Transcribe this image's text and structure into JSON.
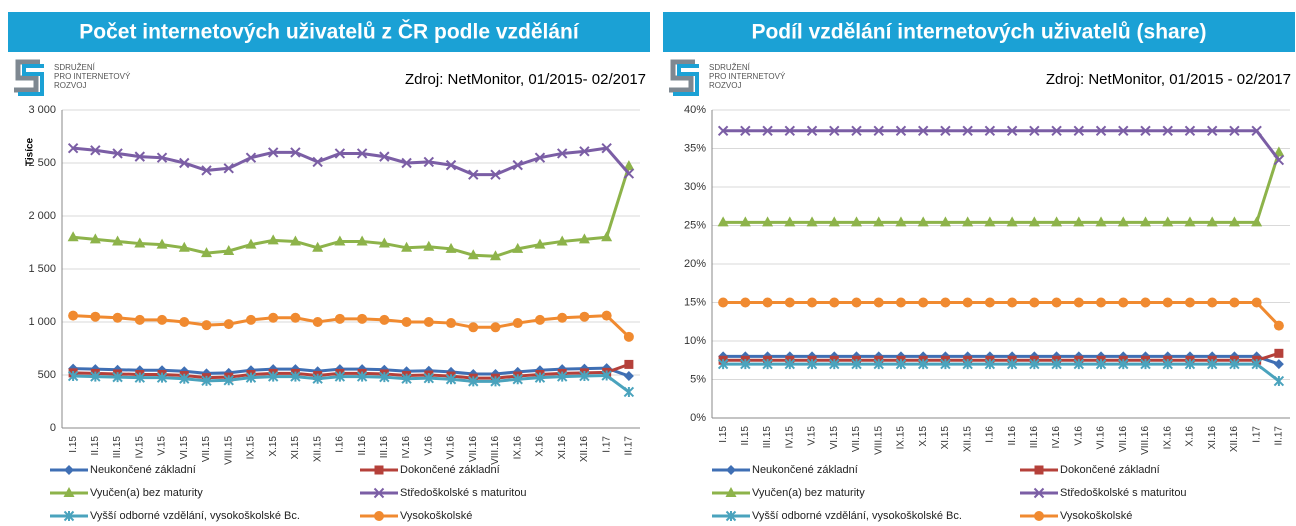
{
  "logo_text": [
    "SDRUŽENÍ",
    "PRO INTERNETOVÝ",
    "ROZVOJ"
  ],
  "chart_data": [
    {
      "type": "line",
      "title": "Počet internetových uživatelů z ČR podle vzdělání",
      "source": "Zdroj: NetMonitor, 01/2015- 02/2017",
      "y_label": "Tisíce",
      "categories": [
        "I.15",
        "II.15",
        "III.15",
        "IV.15",
        "V.15",
        "VI.15",
        "VII.15",
        "VIII.15",
        "IX.15",
        "X.15",
        "XI.15",
        "XII.15",
        "I.16",
        "II.16",
        "III.16",
        "IV.16",
        "V.16",
        "VI.16",
        "VII.16",
        "VIII.16",
        "IX.16",
        "X.16",
        "XI.16",
        "XII.16",
        "I.17",
        "II.17"
      ],
      "ylim": [
        0,
        3000
      ],
      "yticks": [
        0,
        500,
        {
          "value": 1000,
          "label": "1 000"
        },
        {
          "value": 1500,
          "label": "1 500"
        },
        {
          "value": 2000,
          "label": "2 000"
        },
        {
          "value": 2500,
          "label": "2 500"
        },
        {
          "value": 3000,
          "label": "3 000"
        }
      ],
      "grid": true,
      "series": [
        {
          "name": "Neukončené základní",
          "color": "#3f6fb4",
          "marker": "diamond",
          "values": [
            560,
            555,
            550,
            545,
            545,
            535,
            515,
            520,
            545,
            555,
            555,
            535,
            555,
            555,
            550,
            535,
            540,
            530,
            510,
            510,
            530,
            545,
            555,
            560,
            565,
            490
          ]
        },
        {
          "name": "Dokončené základní",
          "color": "#b5403a",
          "marker": "square",
          "values": [
            520,
            515,
            510,
            505,
            505,
            495,
            475,
            480,
            505,
            515,
            515,
            495,
            515,
            515,
            510,
            495,
            500,
            490,
            470,
            470,
            490,
            505,
            515,
            520,
            525,
            600
          ]
        },
        {
          "name": "Vyučen(a) bez maturity",
          "color": "#8db34a",
          "marker": "triangle",
          "values": [
            1800,
            1780,
            1760,
            1740,
            1730,
            1700,
            1650,
            1670,
            1730,
            1770,
            1760,
            1700,
            1760,
            1760,
            1740,
            1700,
            1710,
            1690,
            1630,
            1620,
            1690,
            1730,
            1760,
            1780,
            1800,
            2470
          ]
        },
        {
          "name": "Středoškolské s maturitou",
          "color": "#7b5ea5",
          "marker": "x",
          "values": [
            2640,
            2620,
            2590,
            2560,
            2550,
            2500,
            2430,
            2450,
            2550,
            2600,
            2600,
            2510,
            2590,
            2590,
            2560,
            2500,
            2510,
            2480,
            2390,
            2390,
            2480,
            2550,
            2590,
            2610,
            2640,
            2400
          ]
        },
        {
          "name": "Vyšší odborné vzdělání, vysokoškolské Bc.",
          "color": "#4aa3bd",
          "marker": "star",
          "values": [
            490,
            485,
            480,
            475,
            475,
            465,
            445,
            450,
            475,
            485,
            485,
            465,
            485,
            485,
            480,
            465,
            470,
            460,
            440,
            440,
            460,
            475,
            485,
            490,
            495,
            340
          ]
        },
        {
          "name": "Vysokoškolské",
          "color": "#f08a30",
          "marker": "circle",
          "values": [
            1060,
            1050,
            1040,
            1020,
            1020,
            1000,
            970,
            980,
            1020,
            1040,
            1040,
            1000,
            1030,
            1030,
            1020,
            1000,
            1000,
            990,
            950,
            950,
            990,
            1020,
            1040,
            1050,
            1060,
            860
          ]
        }
      ]
    },
    {
      "type": "line",
      "title": "Podíl vzdělání internetových uživatelů (share)",
      "source": "Zdroj: NetMonitor, 01/2015 - 02/2017",
      "categories": [
        "I.15",
        "II.15",
        "III.15",
        "IV.15",
        "V.15",
        "VI.15",
        "VII.15",
        "VIII.15",
        "IX.15",
        "X.15",
        "XI.15",
        "XII.15",
        "I.16",
        "II.16",
        "III.16",
        "IV.16",
        "V.16",
        "VI.16",
        "VII.16",
        "VIII.16",
        "IX.16",
        "X.16",
        "XI.16",
        "XII.16",
        "I.17",
        "II.17"
      ],
      "ylim": [
        0,
        40
      ],
      "yticks": [
        {
          "value": 0,
          "label": "0%"
        },
        {
          "value": 5,
          "label": "5%"
        },
        {
          "value": 10,
          "label": "10%"
        },
        {
          "value": 15,
          "label": "15%"
        },
        {
          "value": 20,
          "label": "20%"
        },
        {
          "value": 25,
          "label": "25%"
        },
        {
          "value": 30,
          "label": "30%"
        },
        {
          "value": 35,
          "label": "35%"
        },
        {
          "value": 40,
          "label": "40%"
        }
      ],
      "grid": true,
      "series": [
        {
          "name": "Neukončené základní",
          "color": "#3f6fb4",
          "marker": "diamond",
          "values": [
            8,
            8,
            8,
            8,
            8,
            8,
            8,
            8,
            8,
            8,
            8,
            8,
            8,
            8,
            8,
            8,
            8,
            8,
            8,
            8,
            8,
            8,
            8,
            8,
            8,
            7
          ]
        },
        {
          "name": "Dokončené základní",
          "color": "#b5403a",
          "marker": "square",
          "values": [
            7.5,
            7.5,
            7.5,
            7.5,
            7.5,
            7.5,
            7.5,
            7.5,
            7.5,
            7.5,
            7.5,
            7.5,
            7.5,
            7.5,
            7.5,
            7.5,
            7.5,
            7.5,
            7.5,
            7.5,
            7.5,
            7.5,
            7.5,
            7.5,
            7.5,
            8.4
          ]
        },
        {
          "name": "Vyučen(a) bez maturity",
          "color": "#8db34a",
          "marker": "triangle",
          "values": [
            25.4,
            25.4,
            25.4,
            25.4,
            25.4,
            25.4,
            25.4,
            25.4,
            25.4,
            25.4,
            25.4,
            25.4,
            25.4,
            25.4,
            25.4,
            25.4,
            25.4,
            25.4,
            25.4,
            25.4,
            25.4,
            25.4,
            25.4,
            25.4,
            25.4,
            34.5
          ]
        },
        {
          "name": "Středoškolské s maturitou",
          "color": "#7b5ea5",
          "marker": "x",
          "values": [
            37.3,
            37.3,
            37.3,
            37.3,
            37.3,
            37.3,
            37.3,
            37.3,
            37.3,
            37.3,
            37.3,
            37.3,
            37.3,
            37.3,
            37.3,
            37.3,
            37.3,
            37.3,
            37.3,
            37.3,
            37.3,
            37.3,
            37.3,
            37.3,
            37.3,
            33.5
          ]
        },
        {
          "name": "Vyšší odborné vzdělání, vysokoškolské Bc.",
          "color": "#4aa3bd",
          "marker": "star",
          "values": [
            7,
            7,
            7,
            7,
            7,
            7,
            7,
            7,
            7,
            7,
            7,
            7,
            7,
            7,
            7,
            7,
            7,
            7,
            7,
            7,
            7,
            7,
            7,
            7,
            7,
            4.8
          ]
        },
        {
          "name": "Vysokoškolské",
          "color": "#f08a30",
          "marker": "circle",
          "values": [
            15,
            15,
            15,
            15,
            15,
            15,
            15,
            15,
            15,
            15,
            15,
            15,
            15,
            15,
            15,
            15,
            15,
            15,
            15,
            15,
            15,
            15,
            15,
            15,
            15,
            12
          ]
        }
      ]
    }
  ]
}
